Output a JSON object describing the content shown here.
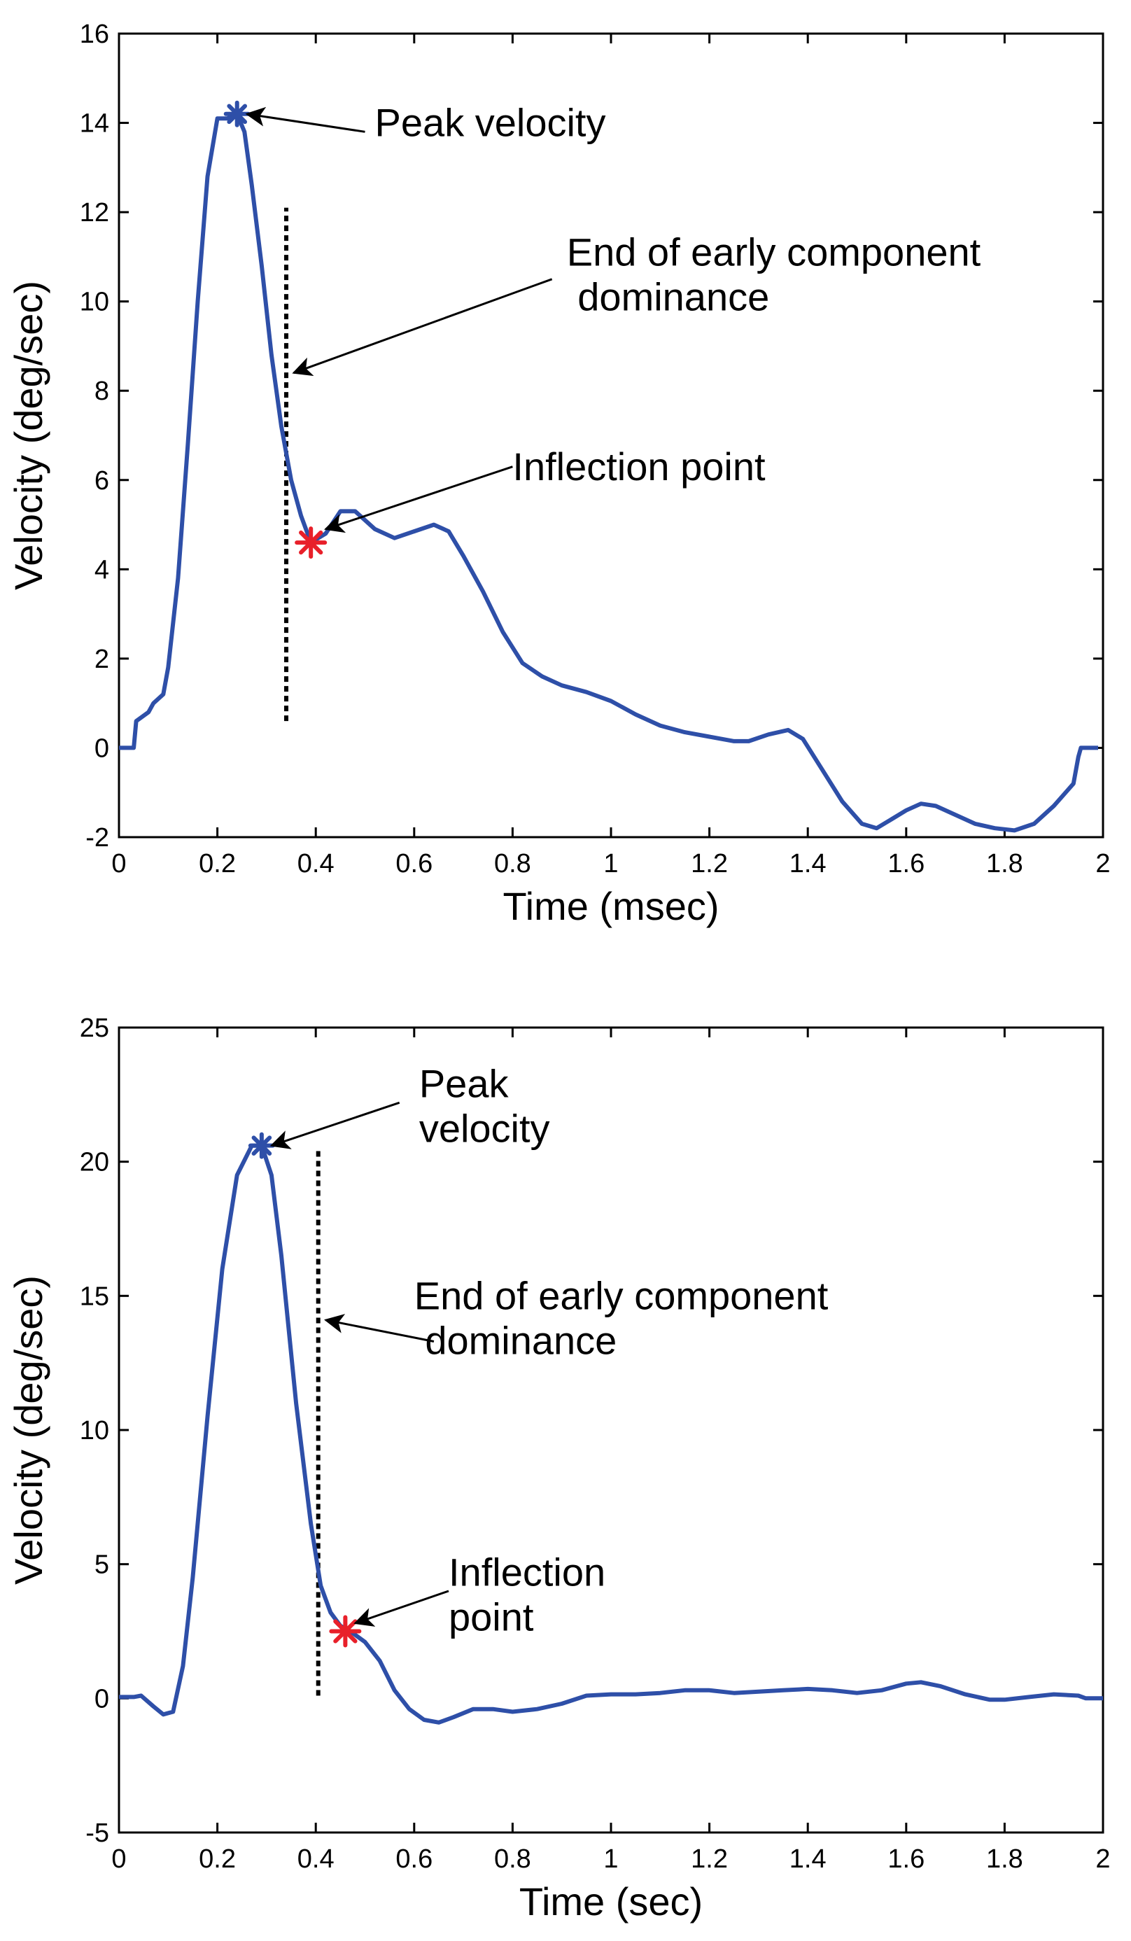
{
  "colors": {
    "curve": "#2e4fa8",
    "peak_marker": "#2e4fa8",
    "inflection_marker": "#e8202a",
    "dashed_line": "#000000",
    "axes": "#000000"
  },
  "chart_data": [
    {
      "type": "line",
      "xlabel": "Time (msec)",
      "ylabel": "Velocity (deg/sec)",
      "xlim": [
        0,
        2
      ],
      "ylim": [
        -2,
        16
      ],
      "xticks": [
        0,
        0.2,
        0.4,
        0.6,
        0.8,
        1,
        1.2,
        1.4,
        1.6,
        1.8,
        2
      ],
      "xtick_labels": [
        "0",
        "0.2",
        "0.4",
        "0.6",
        "0.8",
        "1",
        "1.2",
        "1.4",
        "1.6",
        "1.8",
        "2"
      ],
      "yticks": [
        -2,
        0,
        2,
        4,
        6,
        8,
        10,
        12,
        14,
        16
      ],
      "ytick_labels": [
        "-2",
        "0",
        "2",
        "4",
        "6",
        "8",
        "10",
        "12",
        "14",
        "16"
      ],
      "grid": false,
      "series": [
        {
          "name": "velocity",
          "x": [
            0,
            0.03,
            0.035,
            0.06,
            0.07,
            0.09,
            0.1,
            0.12,
            0.14,
            0.16,
            0.18,
            0.2,
            0.22,
            0.24,
            0.255,
            0.27,
            0.29,
            0.31,
            0.33,
            0.35,
            0.37,
            0.39,
            0.42,
            0.45,
            0.48,
            0.52,
            0.56,
            0.6,
            0.64,
            0.67,
            0.7,
            0.74,
            0.78,
            0.82,
            0.86,
            0.9,
            0.95,
            1.0,
            1.05,
            1.1,
            1.15,
            1.2,
            1.25,
            1.28,
            1.32,
            1.36,
            1.39,
            1.43,
            1.47,
            1.51,
            1.54,
            1.57,
            1.6,
            1.63,
            1.66,
            1.7,
            1.74,
            1.78,
            1.82,
            1.86,
            1.9,
            1.94,
            1.95,
            1.955,
            1.99
          ],
          "y": [
            0,
            0,
            0.6,
            0.8,
            1.0,
            1.2,
            1.8,
            3.8,
            6.8,
            10.0,
            12.8,
            14.1,
            14.1,
            14.2,
            13.8,
            12.6,
            10.8,
            8.8,
            7.2,
            6.0,
            5.2,
            4.6,
            4.8,
            5.3,
            5.3,
            4.9,
            4.7,
            4.85,
            5.0,
            4.85,
            4.3,
            3.5,
            2.6,
            1.9,
            1.6,
            1.4,
            1.25,
            1.05,
            0.75,
            0.5,
            0.35,
            0.25,
            0.15,
            0.15,
            0.3,
            0.4,
            0.2,
            -0.5,
            -1.2,
            -1.7,
            -1.8,
            -1.6,
            -1.4,
            -1.25,
            -1.3,
            -1.5,
            -1.7,
            -1.8,
            -1.85,
            -1.7,
            -1.3,
            -0.8,
            -0.2,
            0,
            0
          ]
        }
      ],
      "peak": {
        "x": 0.24,
        "y": 14.2,
        "label": "Peak velocity"
      },
      "inflection": {
        "x": 0.39,
        "y": 4.6,
        "label": "Inflection point"
      },
      "early_end": {
        "x": 0.34,
        "y_from": 0.6,
        "y_to": 12.1,
        "label_lines": [
          "End of early component",
          " dominance"
        ],
        "arrow_to": [
          0.355,
          8.4
        ],
        "arrow_from": [
          0.88,
          10.5
        ]
      },
      "peak_arrow": {
        "from": [
          0.5,
          13.8
        ],
        "to": [
          0.26,
          14.2
        ],
        "text_at": [
          0.52,
          13.7
        ]
      },
      "inflection_arrow": {
        "from": [
          0.8,
          6.3
        ],
        "to": [
          0.42,
          4.9
        ],
        "text_at": [
          0.8,
          6.0
        ]
      },
      "early_text_at": [
        0.91,
        10.8
      ]
    },
    {
      "type": "line",
      "xlabel": "Time (sec)",
      "ylabel": "Velocity (deg/sec)",
      "xlim": [
        0,
        2
      ],
      "ylim": [
        -5,
        25
      ],
      "xticks": [
        0,
        0.2,
        0.4,
        0.6,
        0.8,
        1,
        1.2,
        1.4,
        1.6,
        1.8,
        2
      ],
      "xtick_labels": [
        "0",
        "0.2",
        "0.4",
        "0.6",
        "0.8",
        "1",
        "1.2",
        "1.4",
        "1.6",
        "1.8",
        "2"
      ],
      "yticks": [
        -5,
        0,
        5,
        10,
        15,
        20,
        25
      ],
      "ytick_labels": [
        "-5",
        "0",
        "5",
        "10",
        "15",
        "20",
        "25"
      ],
      "grid": false,
      "series": [
        {
          "name": "velocity",
          "x": [
            0,
            0.03,
            0.045,
            0.07,
            0.09,
            0.11,
            0.13,
            0.15,
            0.18,
            0.21,
            0.24,
            0.27,
            0.29,
            0.31,
            0.33,
            0.36,
            0.39,
            0.41,
            0.43,
            0.45,
            0.47,
            0.5,
            0.53,
            0.56,
            0.59,
            0.62,
            0.65,
            0.68,
            0.72,
            0.76,
            0.8,
            0.85,
            0.9,
            0.95,
            1.0,
            1.05,
            1.1,
            1.15,
            1.2,
            1.25,
            1.3,
            1.35,
            1.4,
            1.45,
            1.5,
            1.55,
            1.6,
            1.63,
            1.67,
            1.72,
            1.77,
            1.8,
            1.85,
            1.9,
            1.95,
            1.965,
            2.0
          ],
          "y": [
            0.05,
            0.05,
            0.1,
            -0.3,
            -0.6,
            -0.5,
            1.2,
            4.5,
            10.5,
            16.0,
            19.5,
            20.6,
            20.6,
            19.5,
            16.5,
            11.0,
            6.5,
            4.2,
            3.2,
            2.7,
            2.5,
            2.1,
            1.4,
            0.3,
            -0.4,
            -0.8,
            -0.9,
            -0.7,
            -0.4,
            -0.4,
            -0.5,
            -0.4,
            -0.2,
            0.1,
            0.15,
            0.15,
            0.2,
            0.3,
            0.3,
            0.2,
            0.25,
            0.3,
            0.35,
            0.3,
            0.2,
            0.3,
            0.55,
            0.6,
            0.45,
            0.15,
            -0.05,
            -0.05,
            0.05,
            0.15,
            0.1,
            0.0,
            0.0
          ]
        }
      ],
      "peak": {
        "x": 0.29,
        "y": 20.6,
        "label_lines": [
          "Peak",
          "velocity"
        ]
      },
      "inflection": {
        "x": 0.46,
        "y": 2.5,
        "label_lines": [
          "Inflection",
          "point"
        ]
      },
      "early_end": {
        "x": 0.405,
        "y_from": 0.1,
        "y_to": 20.5,
        "label_lines": [
          "End of early component",
          " dominance"
        ],
        "arrow_to": [
          0.42,
          14.1
        ],
        "arrow_from": [
          0.64,
          13.3
        ]
      },
      "peak_arrow": {
        "from": [
          0.57,
          22.2
        ],
        "to": [
          0.31,
          20.6
        ],
        "text_at": [
          0.61,
          22.4
        ]
      },
      "inflection_arrow": {
        "from": [
          0.67,
          4.0
        ],
        "to": [
          0.48,
          2.8
        ],
        "text_at": [
          0.67,
          4.2
        ]
      },
      "early_text_at": [
        0.6,
        14.5
      ]
    }
  ]
}
